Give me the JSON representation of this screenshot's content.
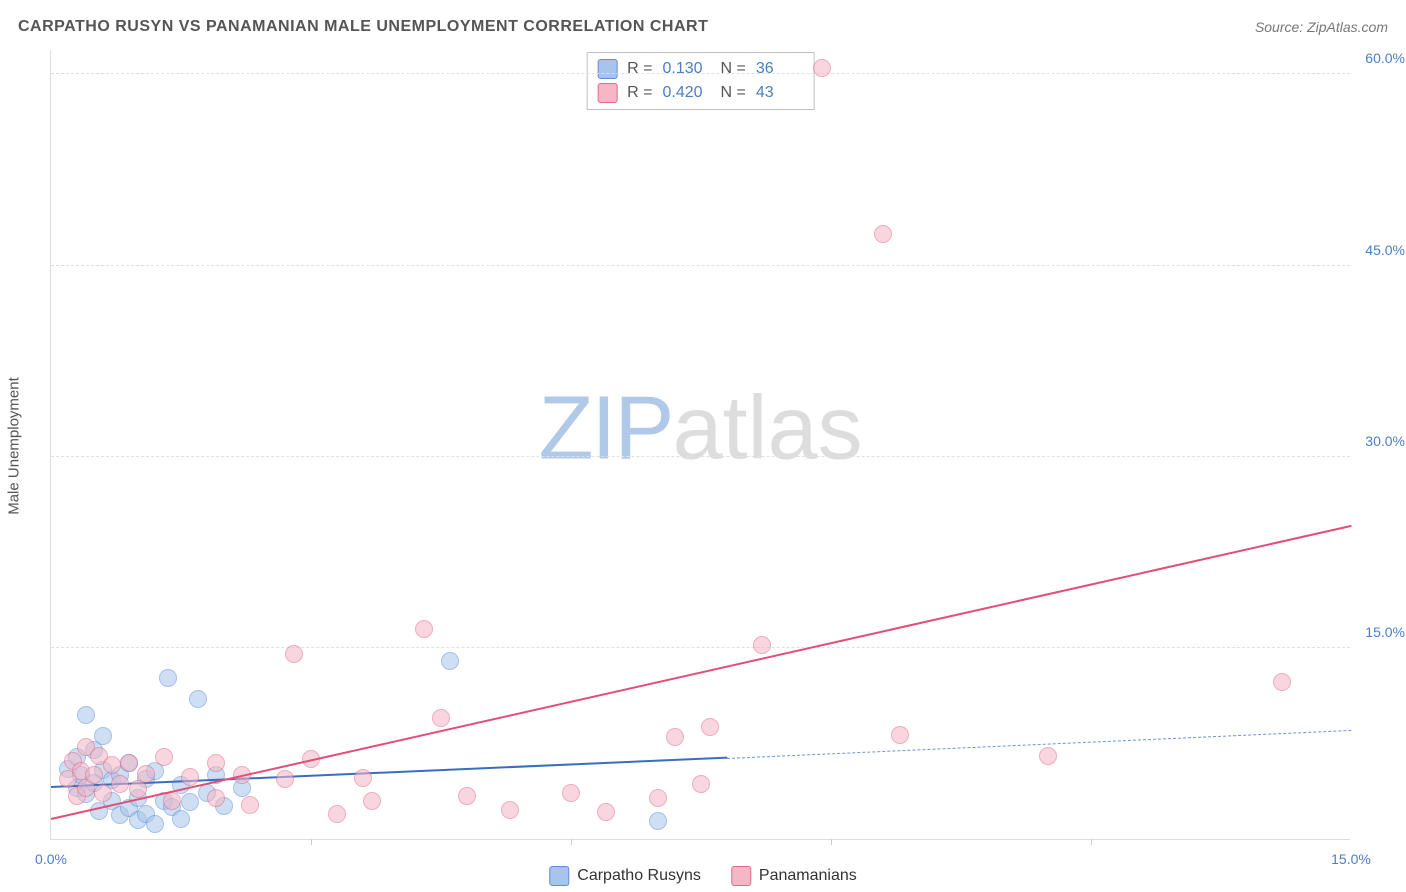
{
  "title": "CARPATHO RUSYN VS PANAMANIAN MALE UNEMPLOYMENT CORRELATION CHART",
  "source": "Source: ZipAtlas.com",
  "y_axis_title": "Male Unemployment",
  "watermark": {
    "part1": "ZIP",
    "part2": "atlas"
  },
  "chart": {
    "type": "scatter",
    "xlim": [
      0,
      15
    ],
    "ylim": [
      0,
      62
    ],
    "x_ticks": [
      0,
      15
    ],
    "x_tick_labels": [
      "0.0%",
      "15.0%"
    ],
    "x_minor_ticks": [
      3,
      6,
      9,
      12
    ],
    "y_ticks": [
      15,
      30,
      45,
      60
    ],
    "y_tick_labels": [
      "15.0%",
      "30.0%",
      "45.0%",
      "60.0%"
    ],
    "background_color": "#ffffff",
    "grid_color": "#e0e0e0",
    "point_radius": 9,
    "point_opacity": 0.55
  },
  "series": [
    {
      "key": "carpatho",
      "label": "Carpatho Rusyns",
      "fill": "#a7c5ec",
      "stroke": "#5c8fd6",
      "r_label": "R",
      "r_value": "0.130",
      "n_label": "N",
      "n_value": "36",
      "trend": {
        "x1": 0.0,
        "y1": 4.0,
        "x2": 7.8,
        "y2": 6.3,
        "solid_color": "#3a6fbf",
        "width": 2,
        "ext_x2": 15.0,
        "ext_y2": 8.5,
        "dash_color": "#6a96cf"
      },
      "points": [
        [
          0.2,
          5.5
        ],
        [
          0.3,
          4.0
        ],
        [
          0.3,
          6.4
        ],
        [
          0.35,
          5.0
        ],
        [
          0.4,
          3.5
        ],
        [
          0.4,
          9.7
        ],
        [
          0.5,
          4.4
        ],
        [
          0.5,
          7.0
        ],
        [
          0.55,
          2.2
        ],
        [
          0.6,
          5.4
        ],
        [
          0.6,
          8.1
        ],
        [
          0.7,
          3.0
        ],
        [
          0.7,
          4.6
        ],
        [
          0.8,
          1.9
        ],
        [
          0.8,
          5.0
        ],
        [
          0.9,
          2.4
        ],
        [
          0.9,
          6.0
        ],
        [
          1.0,
          3.2
        ],
        [
          1.0,
          1.5
        ],
        [
          1.1,
          4.7
        ],
        [
          1.1,
          2.0
        ],
        [
          1.2,
          5.3
        ],
        [
          1.2,
          1.2
        ],
        [
          1.3,
          3.0
        ],
        [
          1.35,
          12.6
        ],
        [
          1.4,
          2.5
        ],
        [
          1.5,
          4.2
        ],
        [
          1.5,
          1.6
        ],
        [
          1.6,
          2.9
        ],
        [
          1.7,
          11.0
        ],
        [
          1.8,
          3.6
        ],
        [
          1.9,
          5.0
        ],
        [
          2.0,
          2.6
        ],
        [
          2.2,
          4.0
        ],
        [
          4.6,
          14.0
        ],
        [
          7.0,
          1.4
        ]
      ]
    },
    {
      "key": "panamanian",
      "label": "Panamanians",
      "fill": "#f5b6c5",
      "stroke": "#e06a8a",
      "r_label": "R",
      "r_value": "0.420",
      "n_label": "N",
      "n_value": "43",
      "trend": {
        "x1": 0.0,
        "y1": 1.5,
        "x2": 15.0,
        "y2": 24.5,
        "solid_color": "#e34d76",
        "width": 2.5
      },
      "points": [
        [
          0.2,
          4.7
        ],
        [
          0.25,
          6.1
        ],
        [
          0.3,
          3.4
        ],
        [
          0.35,
          5.3
        ],
        [
          0.4,
          4.0
        ],
        [
          0.4,
          7.2
        ],
        [
          0.5,
          5.0
        ],
        [
          0.55,
          6.5
        ],
        [
          0.6,
          3.6
        ],
        [
          0.7,
          5.8
        ],
        [
          0.8,
          4.3
        ],
        [
          0.9,
          6.0
        ],
        [
          1.0,
          3.9
        ],
        [
          1.1,
          5.1
        ],
        [
          1.3,
          6.4
        ],
        [
          1.4,
          3.0
        ],
        [
          1.6,
          4.9
        ],
        [
          1.9,
          6.0
        ],
        [
          1.9,
          3.2
        ],
        [
          2.2,
          5.0
        ],
        [
          2.3,
          2.7
        ],
        [
          2.7,
          4.7
        ],
        [
          2.8,
          14.5
        ],
        [
          3.0,
          6.3
        ],
        [
          3.3,
          2.0
        ],
        [
          3.6,
          4.8
        ],
        [
          3.7,
          3.0
        ],
        [
          4.3,
          16.5
        ],
        [
          4.5,
          9.5
        ],
        [
          4.8,
          3.4
        ],
        [
          5.3,
          2.3
        ],
        [
          6.0,
          3.6
        ],
        [
          6.4,
          2.1
        ],
        [
          7.0,
          3.2
        ],
        [
          7.2,
          8.0
        ],
        [
          7.5,
          4.3
        ],
        [
          7.6,
          8.8
        ],
        [
          8.2,
          15.2
        ],
        [
          8.9,
          60.5
        ],
        [
          9.6,
          47.5
        ],
        [
          9.8,
          8.2
        ],
        [
          11.5,
          6.5
        ],
        [
          14.2,
          12.3
        ]
      ]
    }
  ]
}
